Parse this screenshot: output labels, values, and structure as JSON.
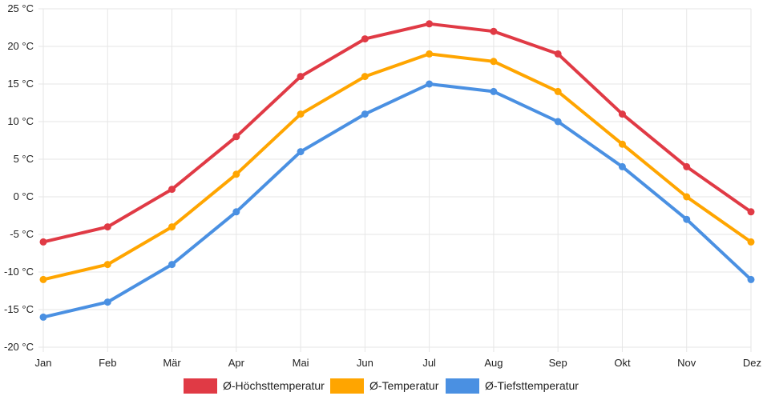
{
  "chart_data": {
    "type": "line",
    "title": "",
    "xlabel": "",
    "ylabel": "",
    "categories": [
      "Jan",
      "Feb",
      "Mär",
      "Apr",
      "Mai",
      "Jun",
      "Jul",
      "Aug",
      "Sep",
      "Okt",
      "Nov",
      "Dez"
    ],
    "ylim": [
      -20,
      25
    ],
    "yticks": [
      25,
      20,
      15,
      10,
      5,
      0,
      -5,
      -10,
      -15,
      -20
    ],
    "y_unit": " °C",
    "grid": true,
    "legend_position": "bottom-center",
    "series": [
      {
        "name": "Ø-Höchsttemperatur",
        "color": "#e03a45",
        "values": [
          -6,
          -4,
          1,
          8,
          16,
          21,
          23,
          22,
          19,
          11,
          4,
          -2
        ]
      },
      {
        "name": "Ø-Temperatur",
        "color": "#ffa500",
        "values": [
          -11,
          -9,
          -4,
          3,
          11,
          16,
          19,
          18,
          14,
          7,
          0,
          -6
        ]
      },
      {
        "name": "Ø-Tiefsttemperatur",
        "color": "#4a90e2",
        "values": [
          -16,
          -14,
          -9,
          -2,
          6,
          11,
          15,
          14,
          10,
          4,
          -3,
          -11
        ]
      }
    ]
  }
}
